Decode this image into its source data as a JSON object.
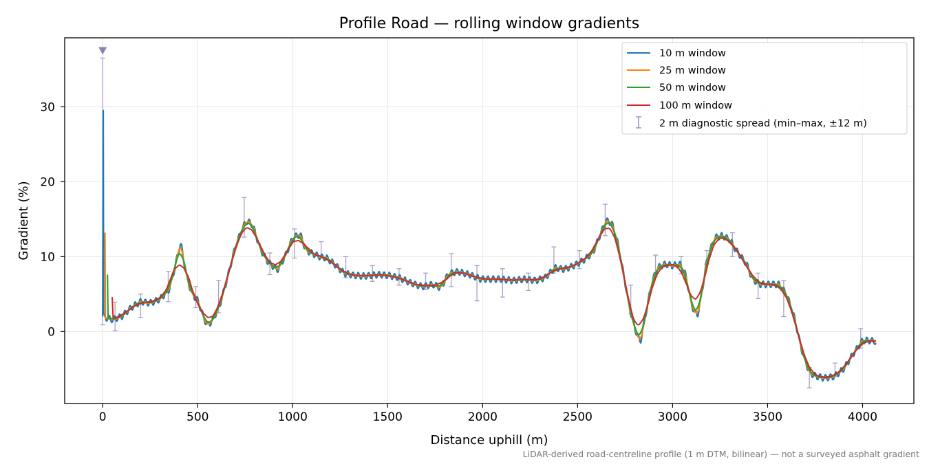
{
  "chart_data": {
    "type": "line",
    "title": "Profile Road — rolling window gradients",
    "xlabel": "Distance uphill (m)",
    "ylabel": "Gradient (%)",
    "xlim": [
      -200,
      4270
    ],
    "ylim": [
      -9.6,
      39.2
    ],
    "xticks": [
      0,
      500,
      1000,
      1500,
      2000,
      2500,
      3000,
      3500,
      4000
    ],
    "yticks": [
      0,
      10,
      20,
      30
    ],
    "grid": true,
    "legend_position": "upper right",
    "footnote": "LiDAR-derived road-centreline profile (1 m DTM, bilinear) — not a surveyed asphalt gradient",
    "outlier_marker": {
      "x": 0,
      "y": 37.5,
      "color": "#8c80b0"
    },
    "base_profile": {
      "x": [
        0,
        50,
        100,
        150,
        200,
        250,
        300,
        350,
        380,
        410,
        440,
        470,
        500,
        530,
        550,
        580,
        620,
        660,
        700,
        740,
        760,
        790,
        830,
        870,
        920,
        960,
        1000,
        1040,
        1070,
        1100,
        1140,
        1180,
        1220,
        1270,
        1320,
        1380,
        1450,
        1500,
        1560,
        1620,
        1680,
        1740,
        1780,
        1820,
        1870,
        1930,
        1990,
        2050,
        2100,
        2160,
        2220,
        2280,
        2330,
        2380,
        2430,
        2480,
        2530,
        2580,
        2620,
        2650,
        2680,
        2710,
        2740,
        2770,
        2800,
        2830,
        2860,
        2890,
        2920,
        2960,
        3000,
        3040,
        3070,
        3100,
        3130,
        3150,
        3180,
        3220,
        3260,
        3300,
        3330,
        3360,
        3390,
        3420,
        3460,
        3500,
        3560,
        3600,
        3640,
        3680,
        3720,
        3760,
        3800,
        3850,
        3900,
        3950,
        4000,
        4040,
        4070
      ],
      "y": [
        2.0,
        1.6,
        2.0,
        3.2,
        4.0,
        3.8,
        4.3,
        5.6,
        8.5,
        12.0,
        7.5,
        5.0,
        4.2,
        2.0,
        0.8,
        1.5,
        3.8,
        7.5,
        11.5,
        14.0,
        14.8,
        14.2,
        11.0,
        9.3,
        8.2,
        10.0,
        12.5,
        13.0,
        10.8,
        10.5,
        10.0,
        9.8,
        9.0,
        7.8,
        7.5,
        7.4,
        7.6,
        7.5,
        7.2,
        6.5,
        6.0,
        6.3,
        5.8,
        7.7,
        8.0,
        7.6,
        7.0,
        7.0,
        7.0,
        6.8,
        7.0,
        6.8,
        7.2,
        8.5,
        8.3,
        8.8,
        9.5,
        10.5,
        13.0,
        14.8,
        14.5,
        12.0,
        8.0,
        3.5,
        0.5,
        -1.5,
        2.5,
        6.5,
        8.5,
        9.0,
        8.8,
        9.0,
        7.5,
        3.5,
        2.0,
        4.5,
        9.5,
        12.5,
        12.8,
        12.3,
        11.0,
        10.0,
        9.0,
        7.0,
        6.3,
        6.3,
        6.3,
        5.0,
        2.0,
        -2.5,
        -5.5,
        -6.0,
        -6.2,
        -6.0,
        -5.0,
        -3.0,
        -1.2,
        -1.2,
        -1.3
      ]
    },
    "series": [
      {
        "name": "10 m window",
        "color": "#1f77b4",
        "window": 10,
        "start": 5,
        "lead": [
          [
            0,
            2.0
          ],
          [
            3,
            29.5
          ],
          [
            5,
            2.5
          ]
        ]
      },
      {
        "name": "25 m window",
        "color": "#ff7f0e",
        "window": 25,
        "start": 12,
        "lead": [
          [
            12,
            13.2
          ],
          [
            14,
            2.2
          ]
        ]
      },
      {
        "name": "50 m window",
        "color": "#2ca02c",
        "window": 50,
        "start": 25,
        "lead": [
          [
            25,
            7.6
          ],
          [
            28,
            2.3
          ]
        ]
      },
      {
        "name": "100 m window",
        "color": "#d62728",
        "window": 100,
        "start": 50,
        "lead": [
          [
            50,
            4.6
          ],
          [
            55,
            1.8
          ]
        ]
      }
    ],
    "errorbars": {
      "name": "2 m diagnostic spread (min–max, ±12 m)",
      "color": "#9a8fbe",
      "points": [
        {
          "x": 0,
          "lo": 0.9,
          "hi": 36.5
        },
        {
          "x": 65,
          "lo": 0.1,
          "hi": 3.9
        },
        {
          "x": 200,
          "lo": 1.9,
          "hi": 5.0
        },
        {
          "x": 345,
          "lo": 4.0,
          "hi": 8.0
        },
        {
          "x": 490,
          "lo": 3.2,
          "hi": 6.0
        },
        {
          "x": 610,
          "lo": 2.5,
          "hi": 6.8
        },
        {
          "x": 745,
          "lo": 12.6,
          "hi": 17.9
        },
        {
          "x": 880,
          "lo": 7.6,
          "hi": 10.5
        },
        {
          "x": 1010,
          "lo": 9.8,
          "hi": 13.7
        },
        {
          "x": 1150,
          "lo": 9.8,
          "hi": 12.0
        },
        {
          "x": 1280,
          "lo": 7.2,
          "hi": 10.0
        },
        {
          "x": 1420,
          "lo": 6.7,
          "hi": 8.8
        },
        {
          "x": 1560,
          "lo": 6.2,
          "hi": 8.4
        },
        {
          "x": 1700,
          "lo": 5.6,
          "hi": 7.8
        },
        {
          "x": 1835,
          "lo": 6.0,
          "hi": 10.4
        },
        {
          "x": 1970,
          "lo": 4.1,
          "hi": 8.8
        },
        {
          "x": 2105,
          "lo": 4.6,
          "hi": 8.4
        },
        {
          "x": 2240,
          "lo": 5.5,
          "hi": 7.8
        },
        {
          "x": 2375,
          "lo": 7.8,
          "hi": 11.3
        },
        {
          "x": 2510,
          "lo": 8.4,
          "hi": 10.8
        },
        {
          "x": 2645,
          "lo": 12.8,
          "hi": 17.0
        },
        {
          "x": 2780,
          "lo": 2.4,
          "hi": 6.2
        },
        {
          "x": 2910,
          "lo": 7.3,
          "hi": 10.2
        },
        {
          "x": 3045,
          "lo": 7.7,
          "hi": 10.0
        },
        {
          "x": 3180,
          "lo": 9.0,
          "hi": 10.8
        },
        {
          "x": 3315,
          "lo": 10.0,
          "hi": 13.2
        },
        {
          "x": 3450,
          "lo": 4.4,
          "hi": 7.8
        },
        {
          "x": 3585,
          "lo": 2.0,
          "hi": 6.8
        },
        {
          "x": 3720,
          "lo": -7.5,
          "hi": -4.8
        },
        {
          "x": 3855,
          "lo": -6.0,
          "hi": -4.2
        },
        {
          "x": 3990,
          "lo": -2.2,
          "hi": 0.4
        }
      ]
    }
  }
}
